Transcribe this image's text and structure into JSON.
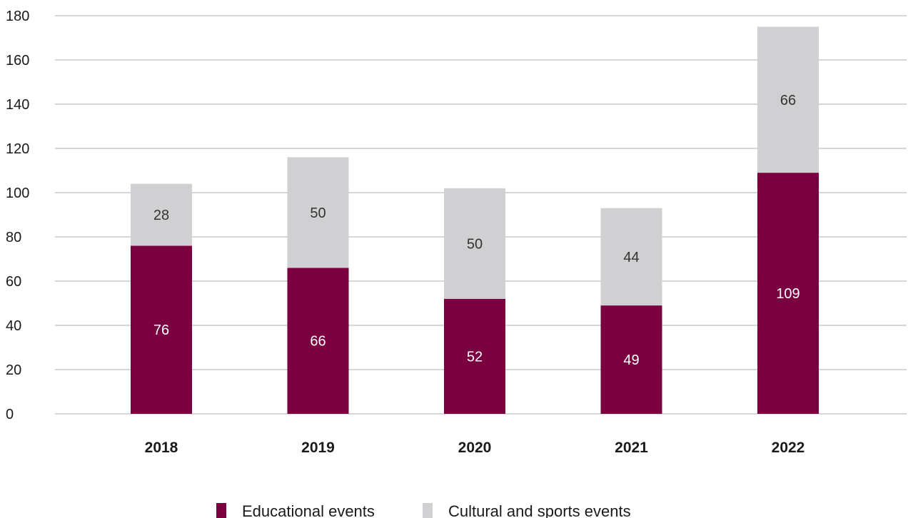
{
  "chart_data": {
    "type": "bar",
    "stacked": true,
    "categories": [
      "2018",
      "2019",
      "2020",
      "2021",
      "2022"
    ],
    "series": [
      {
        "name": "Educational events",
        "values": [
          76,
          66,
          52,
          49,
          109
        ],
        "color": "#7a0040",
        "label_color": "#ffffff"
      },
      {
        "name": "Cultural and sports events",
        "values": [
          28,
          50,
          50,
          44,
          66
        ],
        "color": "#d0d0d2",
        "label_color": "#333333"
      }
    ],
    "ylim": [
      0,
      180
    ],
    "yticks": [
      0,
      20,
      40,
      60,
      80,
      100,
      120,
      140,
      160,
      180
    ],
    "grid": true,
    "legend_position": "bottom",
    "gridline_color": "#c8c8c8"
  }
}
